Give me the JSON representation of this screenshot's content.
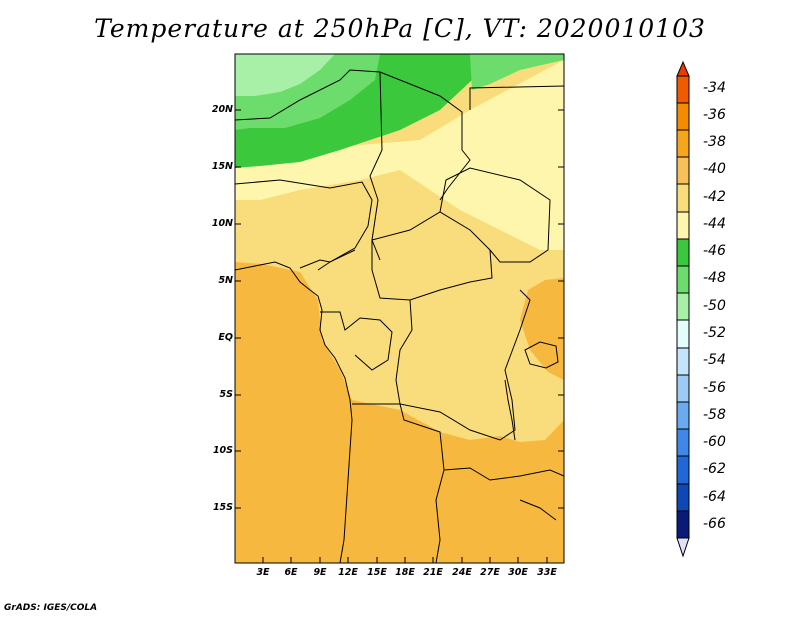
{
  "title": "Temperature at 250hPa [C], VT: 2020010103",
  "credit": "GrADS: IGES/COLA",
  "lat_labels": [
    "20N",
    "15N",
    "10N",
    "5N",
    "EQ",
    "5S",
    "10S",
    "15S"
  ],
  "lon_labels": [
    "3E",
    "6E",
    "9E",
    "12E",
    "15E",
    "18E",
    "21E",
    "24E",
    "27E",
    "30E",
    "33E"
  ],
  "colorbar": {
    "labels": [
      "-34",
      "-36",
      "-38",
      "-40",
      "-42",
      "-44",
      "-46",
      "-48",
      "-50",
      "-52",
      "-54",
      "-56",
      "-58",
      "-60",
      "-62",
      "-64",
      "-66"
    ],
    "colors": [
      "#f05a00",
      "#f58c00",
      "#f7a61c",
      "#f8c05a",
      "#f9dc7c",
      "#fff6ae",
      "#3cc83c",
      "#6cdc6c",
      "#a8f0a8",
      "#e4fcfc",
      "#c4e4fc",
      "#9cccf4",
      "#6aaaf0",
      "#4088e8",
      "#1e68d8",
      "#0e48b4",
      "#0a1a78",
      "#e0e0f8"
    ]
  }
}
